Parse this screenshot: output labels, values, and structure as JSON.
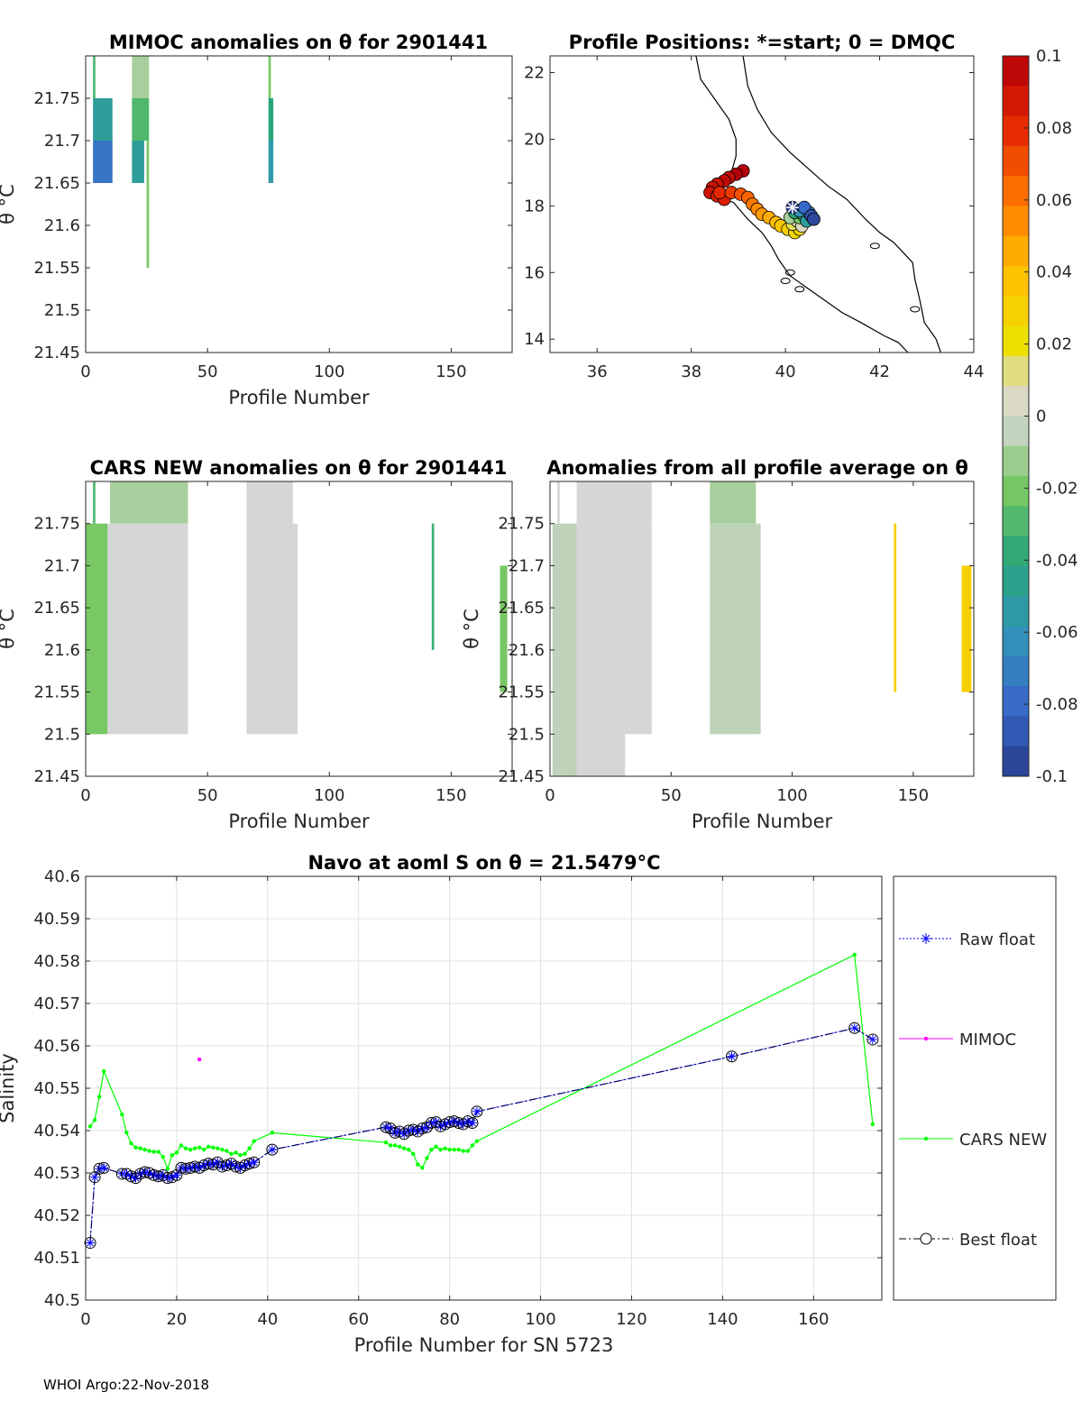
{
  "chart_data": [
    {
      "type": "heatmap",
      "title": "MIMOC anomalies on θ  for 2901441",
      "xlabel": "Profile Number",
      "ylabel": "θ °C",
      "xlim": [
        0,
        175
      ],
      "ylim": [
        21.45,
        21.8
      ],
      "xticks": [
        "0",
        "50",
        "100",
        "150"
      ],
      "yticks": [
        "21.45",
        "21.5",
        "21.55",
        "21.6",
        "21.65",
        "21.7",
        "21.75"
      ],
      "cells": [
        {
          "x0": 3,
          "x1": 4,
          "y0": 21.75,
          "y1": 21.8,
          "value": -0.03
        },
        {
          "x0": 3,
          "x1": 11,
          "y0": 21.7,
          "y1": 21.75,
          "value": -0.05
        },
        {
          "x0": 3,
          "x1": 11,
          "y0": 21.65,
          "y1": 21.7,
          "value": -0.075
        },
        {
          "x0": 19,
          "x1": 26,
          "y0": 21.75,
          "y1": 21.8,
          "value": -0.01
        },
        {
          "x0": 19,
          "x1": 26,
          "y0": 21.7,
          "y1": 21.75,
          "value": -0.03
        },
        {
          "x0": 19,
          "x1": 24,
          "y0": 21.65,
          "y1": 21.7,
          "value": -0.05
        },
        {
          "x0": 25,
          "x1": 26,
          "y0": 21.55,
          "y1": 21.7,
          "value": -0.02
        },
        {
          "x0": 75,
          "x1": 76,
          "y0": 21.75,
          "y1": 21.8,
          "value": -0.02
        },
        {
          "x0": 75,
          "x1": 77,
          "y0": 21.7,
          "y1": 21.75,
          "value": -0.04
        },
        {
          "x0": 75,
          "x1": 77,
          "y0": 21.65,
          "y1": 21.7,
          "value": -0.055
        }
      ]
    },
    {
      "type": "scatter",
      "title": "Profile Positions: *=start; 0 = DMQC",
      "xlim": [
        35,
        44
      ],
      "ylim": [
        13.6,
        22.5
      ],
      "xticks": [
        "36",
        "38",
        "40",
        "42",
        "44"
      ],
      "yticks": [
        "14",
        "16",
        "18",
        "20",
        "22"
      ],
      "start_marker": {
        "x": 40.15,
        "y": 17.95
      },
      "positions": [
        {
          "x": 39.1,
          "y": 19.05,
          "value": 0.1
        },
        {
          "x": 38.95,
          "y": 18.95,
          "value": 0.1
        },
        {
          "x": 38.8,
          "y": 18.85,
          "value": 0.095
        },
        {
          "x": 38.7,
          "y": 18.75,
          "value": 0.095
        },
        {
          "x": 38.55,
          "y": 18.65,
          "value": 0.09
        },
        {
          "x": 38.45,
          "y": 18.55,
          "value": 0.09
        },
        {
          "x": 38.4,
          "y": 18.4,
          "value": 0.09
        },
        {
          "x": 38.55,
          "y": 18.3,
          "value": 0.085
        },
        {
          "x": 38.7,
          "y": 18.2,
          "value": 0.085
        },
        {
          "x": 38.6,
          "y": 18.4,
          "value": 0.08
        },
        {
          "x": 38.85,
          "y": 18.4,
          "value": 0.075
        },
        {
          "x": 39.05,
          "y": 18.35,
          "value": 0.07
        },
        {
          "x": 39.2,
          "y": 18.25,
          "value": 0.065
        },
        {
          "x": 39.3,
          "y": 18.05,
          "value": 0.06
        },
        {
          "x": 39.4,
          "y": 17.9,
          "value": 0.055
        },
        {
          "x": 39.5,
          "y": 17.75,
          "value": 0.05
        },
        {
          "x": 39.65,
          "y": 17.65,
          "value": 0.045
        },
        {
          "x": 39.8,
          "y": 17.5,
          "value": 0.04
        },
        {
          "x": 39.9,
          "y": 17.4,
          "value": 0.035
        },
        {
          "x": 40.05,
          "y": 17.3,
          "value": 0.03
        },
        {
          "x": 40.2,
          "y": 17.2,
          "value": 0.025
        },
        {
          "x": 40.3,
          "y": 17.3,
          "value": 0.025
        },
        {
          "x": 40.15,
          "y": 17.45,
          "value": 0.015
        },
        {
          "x": 40.25,
          "y": 17.55,
          "value": 0.01
        },
        {
          "x": 40.35,
          "y": 17.4,
          "value": 0.005
        },
        {
          "x": 40.1,
          "y": 17.65,
          "value": -0.01
        },
        {
          "x": 40.3,
          "y": 17.65,
          "value": -0.02
        },
        {
          "x": 40.4,
          "y": 17.7,
          "value": -0.03
        },
        {
          "x": 40.2,
          "y": 17.8,
          "value": -0.04
        },
        {
          "x": 40.45,
          "y": 17.55,
          "value": -0.05
        },
        {
          "x": 40.3,
          "y": 17.85,
          "value": -0.06
        },
        {
          "x": 40.5,
          "y": 17.8,
          "value": -0.07
        },
        {
          "x": 40.4,
          "y": 17.95,
          "value": -0.08
        },
        {
          "x": 40.55,
          "y": 17.7,
          "value": -0.09
        },
        {
          "x": 40.6,
          "y": 17.6,
          "value": -0.095
        },
        {
          "x": 40.15,
          "y": 17.95,
          "value": -0.1
        }
      ]
    },
    {
      "type": "heatmap",
      "title": "CARS NEW anomalies on θ for 2901441",
      "xlabel": "Profile Number",
      "ylabel": "θ °C",
      "xlim": [
        0,
        175
      ],
      "ylim": [
        21.45,
        21.8
      ],
      "xticks": [
        "0",
        "50",
        "100",
        "150"
      ],
      "yticks": [
        "21.45",
        "21.5",
        "21.55",
        "21.6",
        "21.65",
        "21.7",
        "21.75"
      ],
      "cells": [
        {
          "x0": 3,
          "x1": 4,
          "y0": 21.75,
          "y1": 21.8,
          "value": -0.03
        },
        {
          "x0": 10,
          "x1": 42,
          "y0": 21.75,
          "y1": 21.8,
          "value": -0.01
        },
        {
          "x0": 66,
          "x1": 85,
          "y0": 21.75,
          "y1": 21.8,
          "value": 0.0
        },
        {
          "x0": 0,
          "x1": 9,
          "y0": 21.5,
          "y1": 21.75,
          "value": -0.02
        },
        {
          "x0": 9,
          "x1": 42,
          "y0": 21.5,
          "y1": 21.75,
          "value": 0.0
        },
        {
          "x0": 66,
          "x1": 87,
          "y0": 21.5,
          "y1": 21.75,
          "value": 0.0
        },
        {
          "x0": 142,
          "x1": 143,
          "y0": 21.6,
          "y1": 21.75,
          "value": -0.035
        },
        {
          "x0": 170,
          "x1": 173,
          "y0": 21.55,
          "y1": 21.7,
          "value": -0.02
        }
      ]
    },
    {
      "type": "heatmap",
      "title": "Anomalies from all profile average on θ",
      "xlabel": "Profile Number",
      "ylabel": "θ °C",
      "xlim": [
        0,
        175
      ],
      "ylim": [
        21.45,
        21.8
      ],
      "xticks": [
        "0",
        "50",
        "100",
        "150"
      ],
      "yticks": [
        "21.45",
        "21.5",
        "21.55",
        "21.6",
        "21.65",
        "21.7",
        "21.75"
      ],
      "cells": [
        {
          "x0": 3,
          "x1": 4,
          "y0": 21.75,
          "y1": 21.8,
          "value": 0.0
        },
        {
          "x0": 11,
          "x1": 42,
          "y0": 21.75,
          "y1": 21.8,
          "value": 0.0
        },
        {
          "x0": 66,
          "x1": 85,
          "y0": 21.75,
          "y1": 21.8,
          "value": -0.01
        },
        {
          "x0": 1,
          "x1": 11,
          "y0": 21.45,
          "y1": 21.75,
          "value": -0.005
        },
        {
          "x0": 11,
          "x1": 42,
          "y0": 21.5,
          "y1": 21.75,
          "value": 0.0
        },
        {
          "x0": 11,
          "x1": 31,
          "y0": 21.45,
          "y1": 21.5,
          "value": 0.0
        },
        {
          "x0": 66,
          "x1": 87,
          "y0": 21.5,
          "y1": 21.75,
          "value": -0.005
        },
        {
          "x0": 142,
          "x1": 143,
          "y0": 21.55,
          "y1": 21.75,
          "value": 0.03
        },
        {
          "x0": 170,
          "x1": 174,
          "y0": 21.55,
          "y1": 21.7,
          "value": 0.03
        }
      ]
    },
    {
      "type": "line",
      "title": "Navo at aoml S on θ = 21.5479°C",
      "xlabel": "Profile Number for SN 5723",
      "ylabel": "Salinity",
      "xlim": [
        0,
        175
      ],
      "ylim": [
        40.5,
        40.6
      ],
      "xticks": [
        "0",
        "20",
        "40",
        "60",
        "80",
        "100",
        "120",
        "140",
        "160"
      ],
      "yticks": [
        "40.5",
        "40.51",
        "40.52",
        "40.53",
        "40.54",
        "40.55",
        "40.56",
        "40.57",
        "40.58",
        "40.59",
        "40.6"
      ],
      "grid": true,
      "legend": "outside-right",
      "series": [
        {
          "name": "Raw float",
          "color": "#0000ff",
          "x": [
            1,
            2,
            3,
            4,
            8,
            9,
            10,
            11,
            12,
            13,
            14,
            15,
            16,
            17,
            18,
            19,
            20,
            21,
            22,
            23,
            24,
            25,
            26,
            27,
            28,
            29,
            30,
            31,
            32,
            33,
            34,
            35,
            36,
            37,
            41,
            66,
            67,
            68,
            69,
            70,
            71,
            72,
            73,
            74,
            75,
            76,
            77,
            78,
            79,
            80,
            81,
            82,
            83,
            84,
            85,
            86,
            142,
            169,
            173
          ],
          "y": [
            40.5135,
            40.529,
            40.531,
            40.5312,
            40.5298,
            40.5298,
            40.5292,
            40.5288,
            40.5298,
            40.5302,
            40.53,
            40.5295,
            40.5292,
            40.5295,
            40.5288,
            40.529,
            40.5295,
            40.5312,
            40.531,
            40.5312,
            40.5315,
            40.5312,
            40.5318,
            40.5322,
            40.532,
            40.5325,
            40.5315,
            40.5318,
            40.5322,
            40.5315,
            40.5312,
            40.5318,
            40.5322,
            40.5325,
            40.5355,
            40.5408,
            40.5405,
            40.5395,
            40.5398,
            40.5392,
            40.54,
            40.5402,
            40.5398,
            40.5405,
            40.5408,
            40.5418,
            40.542,
            40.541,
            40.5415,
            40.542,
            40.5422,
            40.5418,
            40.5415,
            40.5422,
            40.5418,
            40.5445,
            40.5575,
            40.5642,
            40.5615
          ]
        },
        {
          "name": "MIMOC",
          "color": "#ff00ff",
          "x": [
            25
          ],
          "y": [
            40.5568
          ]
        },
        {
          "name": "CARS NEW",
          "color": "#00ff00",
          "x": [
            1,
            2,
            3,
            4,
            8,
            9,
            10,
            11,
            12,
            13,
            14,
            15,
            16,
            17,
            18,
            19,
            20,
            21,
            22,
            23,
            24,
            25,
            26,
            27,
            28,
            29,
            30,
            31,
            32,
            33,
            34,
            35,
            36,
            37,
            41,
            66,
            67,
            68,
            69,
            70,
            71,
            72,
            73,
            74,
            75,
            76,
            77,
            78,
            79,
            80,
            81,
            82,
            83,
            84,
            85,
            86,
            169,
            173
          ],
          "y": [
            40.541,
            40.5425,
            40.548,
            40.554,
            40.5438,
            40.5395,
            40.537,
            40.536,
            40.5358,
            40.5355,
            40.5352,
            40.535,
            40.535,
            40.5338,
            40.531,
            40.5342,
            40.5348,
            40.5365,
            40.5358,
            40.5355,
            40.5358,
            40.536,
            40.5355,
            40.5362,
            40.536,
            40.5358,
            40.5355,
            40.5352,
            40.5345,
            40.5348,
            40.5342,
            40.5345,
            40.5358,
            40.5375,
            40.5395,
            40.5372,
            40.5365,
            40.5365,
            40.5362,
            40.5358,
            40.5355,
            40.5345,
            40.532,
            40.5312,
            40.5335,
            40.5355,
            40.5362,
            40.5355,
            40.5358,
            40.5355,
            40.5355,
            40.5355,
            40.5352,
            40.5352,
            40.5365,
            40.5375,
            40.5815,
            40.5415
          ]
        },
        {
          "name": "Best float",
          "color": "#000000",
          "x": [
            1,
            2,
            3,
            4,
            8,
            9,
            10,
            11,
            12,
            13,
            14,
            15,
            16,
            17,
            18,
            19,
            20,
            21,
            22,
            23,
            24,
            25,
            26,
            27,
            28,
            29,
            30,
            31,
            32,
            33,
            34,
            35,
            36,
            37,
            41,
            66,
            67,
            68,
            69,
            70,
            71,
            72,
            73,
            74,
            75,
            76,
            77,
            78,
            79,
            80,
            81,
            82,
            83,
            84,
            85,
            86,
            142,
            169,
            173
          ],
          "y": [
            40.5135,
            40.529,
            40.531,
            40.5312,
            40.5298,
            40.5298,
            40.5292,
            40.5288,
            40.5298,
            40.5302,
            40.53,
            40.5295,
            40.5292,
            40.5295,
            40.5288,
            40.529,
            40.5295,
            40.5312,
            40.531,
            40.5312,
            40.5315,
            40.5312,
            40.5318,
            40.5322,
            40.532,
            40.5325,
            40.5315,
            40.5318,
            40.5322,
            40.5315,
            40.5312,
            40.5318,
            40.5322,
            40.5325,
            40.5355,
            40.5408,
            40.5405,
            40.5395,
            40.5398,
            40.5392,
            40.54,
            40.5402,
            40.5398,
            40.5405,
            40.5408,
            40.5418,
            40.542,
            40.541,
            40.5415,
            40.542,
            40.5422,
            40.5418,
            40.5415,
            40.5422,
            40.5418,
            40.5445,
            40.5575,
            40.5642,
            40.5615
          ]
        }
      ]
    }
  ],
  "colorbar": {
    "range": [
      -0.1,
      0.1
    ],
    "ticks": [
      "0.1",
      "0.08",
      "0.06",
      "0.04",
      "0.02",
      "0",
      "-0.02",
      "-0.04",
      "-0.06",
      "-0.08",
      "-0.1"
    ]
  },
  "footer": "WHOI Argo:22-Nov-2018"
}
